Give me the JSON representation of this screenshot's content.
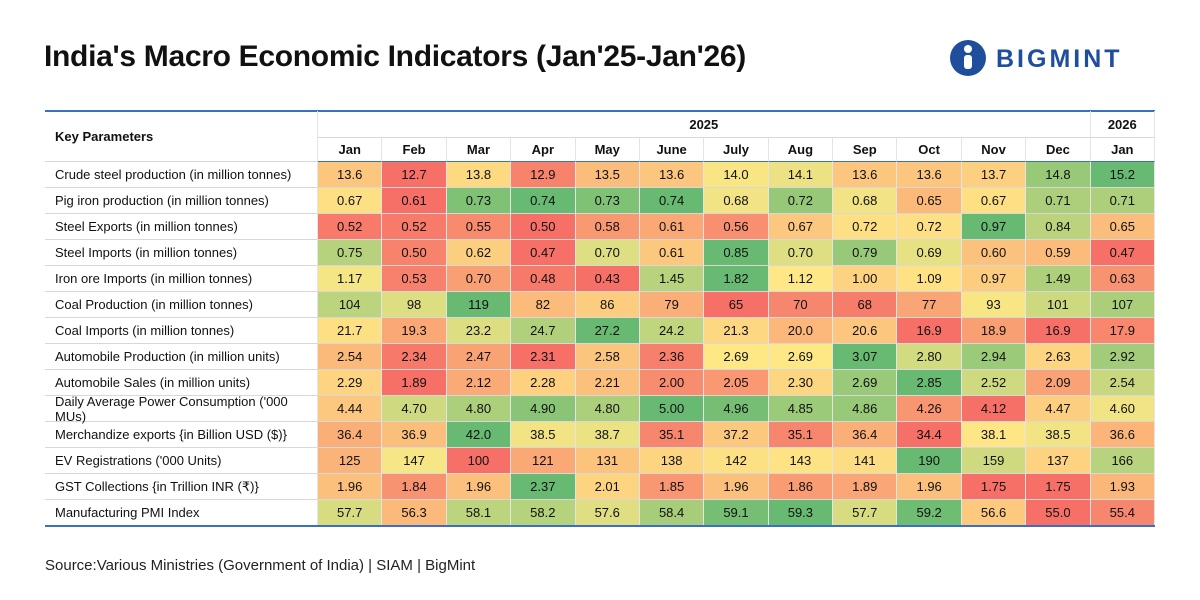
{
  "header": {
    "title": "India's Macro Economic Indicators (Jan'25-Jan'26)",
    "logo": "BIGMINT"
  },
  "table": {
    "corner": "Key Parameters",
    "years": [
      "2025",
      "2026"
    ],
    "months": [
      "Jan",
      "Feb",
      "Mar",
      "Apr",
      "May",
      "June",
      "July",
      "Aug",
      "Sep",
      "Oct",
      "Nov",
      "Dec",
      "Jan"
    ],
    "rows": [
      {
        "label": "Crude steel production (in million tonnes)",
        "cells": [
          "13.6",
          "12.7",
          "13.8",
          "12.9",
          "13.5",
          "13.6",
          "14.0",
          "14.1",
          "13.6",
          "13.6",
          "13.7",
          "14.8",
          "15.2"
        ]
      },
      {
        "label": "Pig iron production (in million tonnes)",
        "cells": [
          "0.67",
          "0.61",
          "0.73",
          "0.74",
          "0.73",
          "0.74",
          "0.68",
          "0.72",
          "0.68",
          "0.65",
          "0.67",
          "0.71",
          "0.71"
        ]
      },
      {
        "label": "Steel Exports (in million tonnes)",
        "cells": [
          "0.52",
          "0.52",
          "0.55",
          "0.50",
          "0.58",
          "0.61",
          "0.56",
          "0.67",
          "0.72",
          "0.72",
          "0.97",
          "0.84",
          "0.65"
        ]
      },
      {
        "label": "Steel Imports (in million tonnes)",
        "cells": [
          "0.75",
          "0.50",
          "0.62",
          "0.47",
          "0.70",
          "0.61",
          "0.85",
          "0.70",
          "0.79",
          "0.69",
          "0.60",
          "0.59",
          "0.47"
        ]
      },
      {
        "label": "Iron ore Imports (in million tonnes)",
        "cells": [
          "1.17",
          "0.53",
          "0.70",
          "0.48",
          "0.43",
          "1.45",
          "1.82",
          "1.12",
          "1.00",
          "1.09",
          "0.97",
          "1.49",
          "0.63"
        ]
      },
      {
        "label": "Coal Production (in million tonnes)",
        "cells": [
          "104",
          "98",
          "119",
          "82",
          "86",
          "79",
          "65",
          "70",
          "68",
          "77",
          "93",
          "101",
          "107"
        ]
      },
      {
        "label": "Coal Imports (in million tonnes)",
        "cells": [
          "21.7",
          "19.3",
          "23.2",
          "24.7",
          "27.2",
          "24.2",
          "21.3",
          "20.0",
          "20.6",
          "16.9",
          "18.9",
          "16.9",
          "17.9"
        ]
      },
      {
        "label": "Automobile Production (in million units)",
        "cells": [
          "2.54",
          "2.34",
          "2.47",
          "2.31",
          "2.58",
          "2.36",
          "2.69",
          "2.69",
          "3.07",
          "2.80",
          "2.94",
          "2.63",
          "2.92"
        ]
      },
      {
        "label": "Automobile Sales (in million units)",
        "cells": [
          "2.29",
          "1.89",
          "2.12",
          "2.28",
          "2.21",
          "2.00",
          "2.05",
          "2.30",
          "2.69",
          "2.85",
          "2.52",
          "2.09",
          "2.54"
        ]
      },
      {
        "label": "Daily Average Power Consumption ('000 MUs)",
        "cells": [
          "4.44",
          "4.70",
          "4.80",
          "4.90",
          "4.80",
          "5.00",
          "4.96",
          "4.85",
          "4.86",
          "4.26",
          "4.12",
          "4.47",
          "4.60"
        ]
      },
      {
        "label": "Merchandize exports {in Billion USD ($)}",
        "cells": [
          "36.4",
          "36.9",
          "42.0",
          "38.5",
          "38.7",
          "35.1",
          "37.2",
          "35.1",
          "36.4",
          "34.4",
          "38.1",
          "38.5",
          "36.6"
        ]
      },
      {
        "label": "EV Registrations ('000 Units)",
        "cells": [
          "125",
          "147",
          "100",
          "121",
          "131",
          "138",
          "142",
          "143",
          "141",
          "190",
          "159",
          "137",
          "166"
        ]
      },
      {
        "label": "GST Collections {in Trillion INR (₹)}",
        "cells": [
          "1.96",
          "1.84",
          "1.96",
          "2.37",
          "2.01",
          "1.85",
          "1.96",
          "1.86",
          "1.89",
          "1.96",
          "1.75",
          "1.75",
          "1.93"
        ]
      },
      {
        "label": "Manufacturing PMI Index",
        "cells": [
          "57.7",
          "56.3",
          "58.1",
          "58.2",
          "57.6",
          "58.4",
          "59.1",
          "59.3",
          "57.7",
          "59.2",
          "56.6",
          "55.0",
          "55.4"
        ]
      }
    ]
  },
  "footer": {
    "source": "Source:Various Ministries (Government of India) | SIAM | BigMint"
  }
}
